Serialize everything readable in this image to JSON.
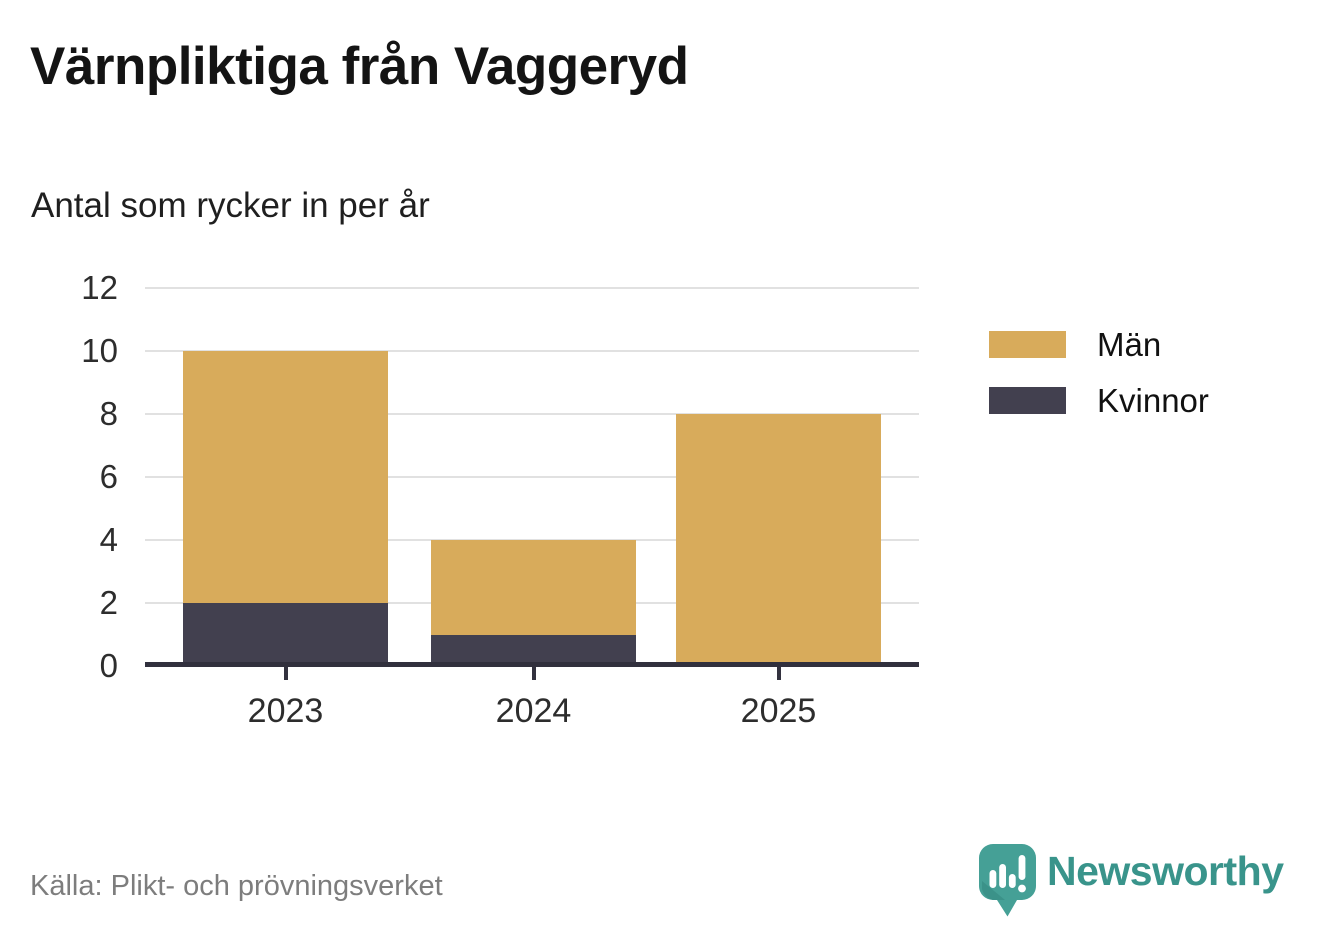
{
  "header": {
    "title": "Värnpliktiga från Vaggeryd",
    "subtitle": "Antal som rycker in per år"
  },
  "chart_data": {
    "type": "bar",
    "stacked": true,
    "title": "Värnpliktiga från Vaggeryd",
    "subtitle": "Antal som rycker in per år",
    "categories": [
      "2023",
      "2024",
      "2025"
    ],
    "series": [
      {
        "name": "Män",
        "color": "#d8ab5b",
        "values": [
          8,
          3,
          8
        ]
      },
      {
        "name": "Kvinnor",
        "color": "#42404f",
        "values": [
          2,
          1,
          0
        ]
      }
    ],
    "totals": [
      10,
      4,
      8
    ],
    "xlabel": "",
    "ylabel": "",
    "ylim": [
      0,
      12
    ],
    "yticks": [
      0,
      2,
      4,
      6,
      8,
      10,
      12
    ],
    "grid": true,
    "legend_position": "right"
  },
  "legend": {
    "items": [
      {
        "label": "Män",
        "color": "#d8ab5b"
      },
      {
        "label": "Kvinnor",
        "color": "#42404f"
      }
    ]
  },
  "footer": {
    "source": "Källa: Plikt- och prövningsverket",
    "brand_name": "Newsworthy"
  },
  "colors": {
    "men": "#d8ab5b",
    "women": "#42404f",
    "axis": "#31303d",
    "gridline": "#e1e1e1",
    "brand_teal": "#45a096",
    "brand_text_teal": "#39948b",
    "source_gray": "#7d7d7d"
  },
  "icons": {
    "brand_icon": "newsworthy-speech-bubble-bar-chart-icon"
  }
}
